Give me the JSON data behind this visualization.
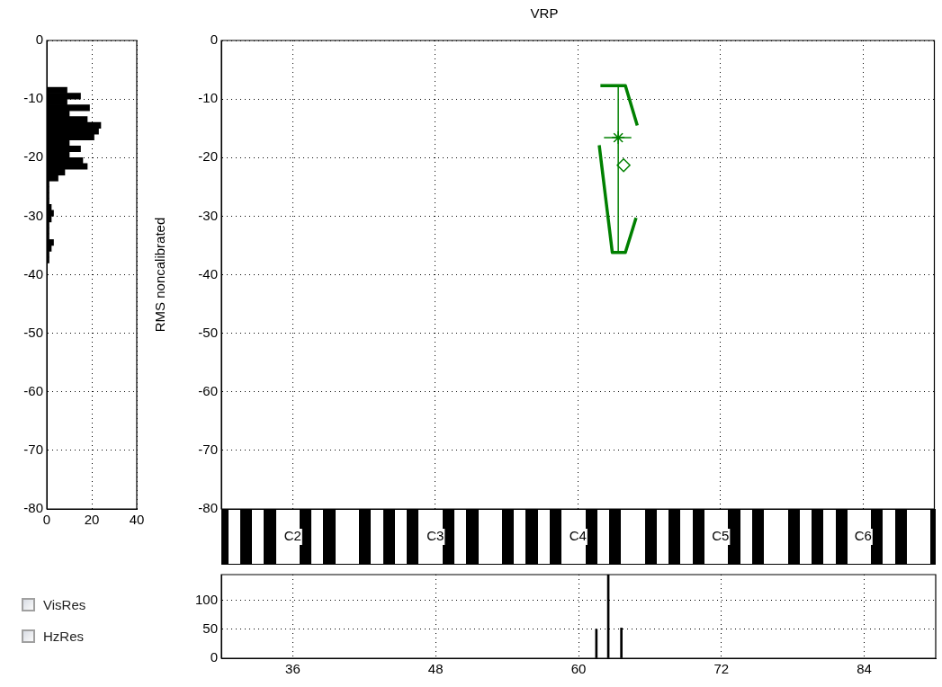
{
  "chart_data": [
    {
      "type": "histogram",
      "orientation": "horizontal",
      "color": "#000000",
      "bins": [
        -38,
        -37,
        -36,
        -35,
        -34,
        -33,
        -32,
        -31,
        -30,
        -29,
        -28,
        -27,
        -26,
        -25,
        -24,
        -23,
        -22,
        -21,
        -20,
        -19,
        -18,
        -17,
        -16,
        -15,
        -14,
        -13,
        -12,
        -11,
        -10,
        -9,
        -8
      ],
      "values": [
        1,
        1,
        2,
        3,
        1,
        1,
        1,
        2,
        3,
        2,
        1,
        1,
        1,
        1,
        5,
        8,
        18,
        16,
        10,
        15,
        10,
        21,
        23,
        24,
        18,
        10,
        19,
        9,
        15,
        9
      ],
      "xlim": [
        0,
        40
      ],
      "xticks": [
        0,
        20,
        40
      ],
      "ylim": [
        -80,
        0
      ],
      "yticks": [
        -80,
        -70,
        -60,
        -50,
        -40,
        -30,
        -20,
        -10,
        0
      ],
      "grid": true,
      "annotations": [
        "VisRes",
        "HzRes"
      ]
    },
    {
      "type": "line",
      "title": "VRP",
      "ylabel": "RMS noncalibrated",
      "xlim": [
        30,
        90
      ],
      "xticks": [
        36,
        48,
        60,
        72,
        84
      ],
      "ylim": [
        -80,
        0
      ],
      "yticks": [
        -80,
        -70,
        -60,
        -50,
        -40,
        -30,
        -20,
        -10,
        0
      ],
      "tick_labels": "y",
      "grid": true,
      "series": [
        {
          "type": "line",
          "color": "#008000",
          "marker": "none",
          "x": [
            61.9,
            64.0,
            65.0
          ],
          "values": [
            -7.7,
            -7.7,
            -14.5
          ]
        },
        {
          "type": "line",
          "color": "#008000",
          "marker": "none",
          "x": [
            61.8,
            62.9,
            64.0,
            64.9
          ],
          "values": [
            -17.9,
            -36.2,
            -36.2,
            -30.3
          ]
        },
        {
          "type": "scatter",
          "color": "#008000",
          "marker": "cross",
          "x": [
            63.4
          ],
          "values": [
            -16.6
          ],
          "errors": [
            [
              -36.2,
              -7.7
            ]
          ],
          "xerrors": [
            [
              62.2,
              64.5
            ]
          ]
        },
        {
          "type": "scatter",
          "color": "#008000",
          "marker": "diamond",
          "x": [
            63.85
          ],
          "values": [
            -21.3
          ]
        }
      ],
      "annotations": [
        "C2",
        "C3",
        "C4",
        "C5",
        "C6"
      ]
    },
    {
      "type": "bar",
      "color": "#000000",
      "x": [
        61.5,
        62.5,
        63.6
      ],
      "values": [
        50,
        144,
        52
      ],
      "xlim": [
        30,
        90
      ],
      "xticks": [
        36,
        48,
        60,
        72,
        84
      ],
      "ylim": [
        0,
        144
      ],
      "yticks": [
        0,
        50,
        100
      ],
      "grid": true
    }
  ]
}
